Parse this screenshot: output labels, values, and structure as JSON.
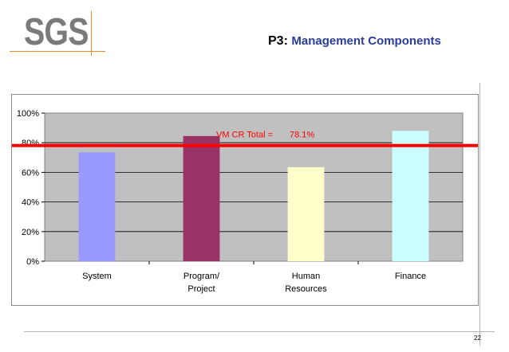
{
  "logo": {
    "text": "SGS"
  },
  "header": {
    "prefix": "P3:",
    "title": "Management Components"
  },
  "page_number": "22",
  "chart_data": {
    "type": "bar",
    "categories": [
      [
        "System"
      ],
      [
        "Program/",
        "Project"
      ],
      [
        "Human",
        "Resources"
      ],
      [
        "Finance"
      ]
    ],
    "values": [
      0.735,
      0.845,
      0.635,
      0.88
    ],
    "bar_colors": [
      "#9999ff",
      "#993366",
      "#ffffcc",
      "#ccffff"
    ],
    "ylim": [
      0,
      1
    ],
    "yticks": [
      "0%",
      "20%",
      "40%",
      "60%",
      "80%",
      "100%"
    ],
    "grid": true,
    "plot_background": "#c0c0c0",
    "reference_line": {
      "value": 0.781,
      "color": "#ff0000",
      "label": "VM CR Total =",
      "value_label": "78.1%"
    }
  }
}
